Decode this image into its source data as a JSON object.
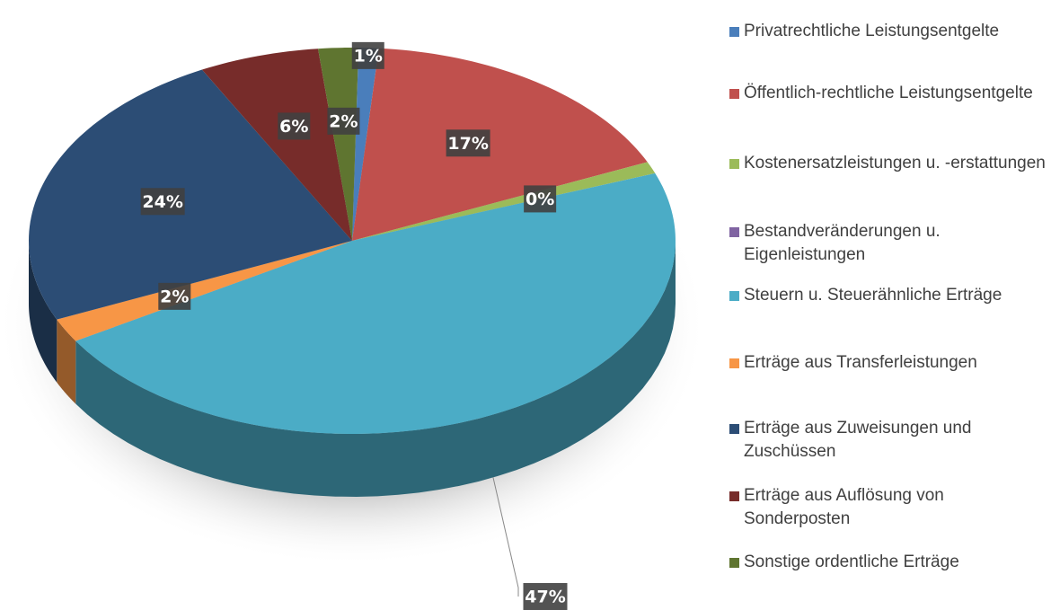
{
  "chart_data": {
    "type": "pie",
    "categories": [
      "Privatrechtliche Leistungsentgelte",
      "Öffentlich-rechtliche Leistungsentgelte",
      "Kostenersatzleistungen u. -erstattungen",
      "Bestandveränderungen u. Eigenleistungen",
      "Steuern u. Steuerähnliche Erträge",
      "Erträge aus Transferleistungen",
      "Erträge aus Zuweisungen und Zuschüssen",
      "Erträge aus Auflösung von Sonderposten",
      "Sonstige ordentliche Erträge"
    ],
    "values": [
      1,
      17,
      1,
      0,
      47,
      2,
      24,
      6,
      2
    ],
    "value_labels": [
      "1%",
      "17%",
      null,
      "0%",
      "47%",
      "2%",
      "24%",
      "6%",
      "2%"
    ],
    "colors": [
      "#4a7ebb",
      "#c0504d",
      "#9bbb59",
      "#8064a2",
      "#4bacc6",
      "#f79646",
      "#2c4d75",
      "#772c2a",
      "#5f7530"
    ],
    "legend": "right"
  }
}
